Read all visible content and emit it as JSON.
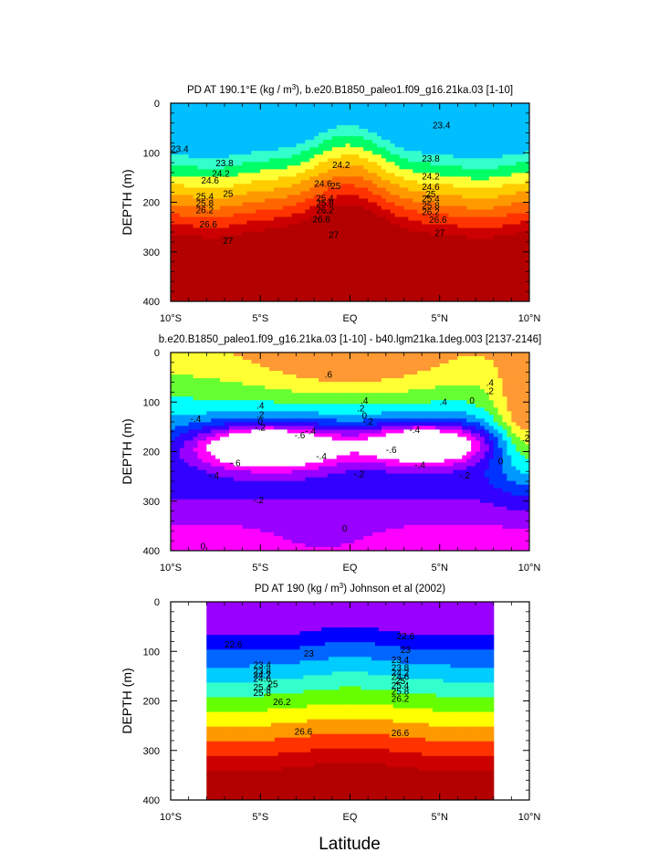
{
  "figure": {
    "xlabel": "Latitude",
    "panel_colors": {
      "top": [
        "#00bfff",
        "#33ffcc",
        "#00ff66",
        "#ffff33",
        "#ffcc00",
        "#ff9900",
        "#ff6600",
        "#ff3300",
        "#cc0000",
        "#b30000"
      ],
      "middle": [
        "#ff9933",
        "#ffff33",
        "#66ff33",
        "#00ffff",
        "#0099ff",
        "#0033ff",
        "#3300ff",
        "#9900ff",
        "#ff00ff",
        "#ffffff"
      ],
      "bottom": [
        "#9900ff",
        "#0000ff",
        "#0066ff",
        "#00ccff",
        "#33ffcc",
        "#66ff00",
        "#ffff00",
        "#ff9900",
        "#ff3300",
        "#cc0000",
        "#b30000"
      ]
    }
  },
  "chart_data": [
    {
      "type": "contour",
      "title": "PD AT 190.1°E (kg / m³), b.e20.B1850_paleo1.f09_g16.21ka.03 [1-10]",
      "title_parts": [
        "PD AT 190.1",
        "°E (kg / m",
        "3",
        "), b.e20.B1850_paleo1.f09_g16.21ka.03 [1-10]"
      ],
      "ylabel": "DEPTH (m)",
      "xlim": [
        -10,
        10
      ],
      "ylim": [
        400,
        0
      ],
      "xticks": [
        -10,
        -5,
        0,
        5,
        10
      ],
      "xtick_labels": [
        "10°S",
        "5°S",
        "EQ",
        "5°N",
        "10°N"
      ],
      "yticks": [
        0,
        100,
        200,
        300,
        400
      ],
      "ytick_labels": [
        "0",
        "100",
        "200",
        "300",
        "400"
      ],
      "contour_levels": [
        23.4,
        23.8,
        24.2,
        24.6,
        25,
        25.4,
        25.8,
        26.2,
        26.6,
        27
      ],
      "contour_labels": [
        {
          "text": "23.4",
          "x": -9.5,
          "y": 93
        },
        {
          "text": "23.4",
          "x": 5.1,
          "y": 45
        },
        {
          "text": "23.8",
          "x": -7,
          "y": 122
        },
        {
          "text": "23.8",
          "x": 4.5,
          "y": 112
        },
        {
          "text": "24.2",
          "x": -7.2,
          "y": 143
        },
        {
          "text": "24.2",
          "x": -0.5,
          "y": 125
        },
        {
          "text": "24.2",
          "x": 4.5,
          "y": 148
        },
        {
          "text": "24.6",
          "x": -7.8,
          "y": 157
        },
        {
          "text": "24.6",
          "x": -1.5,
          "y": 163
        },
        {
          "text": "24.6",
          "x": 4.5,
          "y": 170
        },
        {
          "text": "25",
          "x": -6.8,
          "y": 183
        },
        {
          "text": "25",
          "x": -0.8,
          "y": 168
        },
        {
          "text": "25",
          "x": 4.5,
          "y": 184
        },
        {
          "text": "25.4",
          "x": -8.1,
          "y": 189
        },
        {
          "text": "25.4",
          "x": -1.4,
          "y": 193
        },
        {
          "text": "25.4",
          "x": 4.5,
          "y": 194
        },
        {
          "text": "25.8",
          "x": -8.1,
          "y": 203
        },
        {
          "text": "25.8",
          "x": -1.4,
          "y": 202
        },
        {
          "text": "25.8",
          "x": 4.5,
          "y": 207
        },
        {
          "text": "26.2",
          "x": -8.1,
          "y": 217
        },
        {
          "text": "26.2",
          "x": -1.4,
          "y": 217
        },
        {
          "text": "26.2",
          "x": 4.5,
          "y": 220
        },
        {
          "text": "26.6",
          "x": -7.9,
          "y": 245
        },
        {
          "text": "26.6",
          "x": -1.6,
          "y": 235
        },
        {
          "text": "26.6",
          "x": 4.9,
          "y": 236
        },
        {
          "text": "27",
          "x": -6.8,
          "y": 278
        },
        {
          "text": "27",
          "x": -0.9,
          "y": 266
        },
        {
          "text": "27",
          "x": 5,
          "y": 263
        }
      ]
    },
    {
      "type": "contour",
      "title": "b.e20.B1850_paleo1.f09_g16.21ka.03 [1-10] - b40.lgm21ka.1deg.003 [2137-2146]",
      "ylabel": "DEPTH (m)",
      "xlim": [
        -10,
        10
      ],
      "ylim": [
        400,
        0
      ],
      "xticks": [
        -10,
        -5,
        0,
        5,
        10
      ],
      "xtick_labels": [
        "10°S",
        "5°S",
        "EQ",
        "5°N",
        "10°N"
      ],
      "yticks": [
        0,
        100,
        200,
        300,
        400
      ],
      "ytick_labels": [
        "0",
        "100",
        "200",
        "300",
        "400"
      ],
      "contour_labels": [
        {
          "text": ".6",
          "x": -1.2,
          "y": 45
        },
        {
          "text": ".4",
          "x": 7.8,
          "y": 62
        },
        {
          "text": ".2",
          "x": 7.8,
          "y": 78
        },
        {
          "text": "0",
          "x": 6.8,
          "y": 98
        },
        {
          "text": ".4",
          "x": -5,
          "y": 108
        },
        {
          "text": ".4",
          "x": 0.8,
          "y": 98
        },
        {
          "text": ".4",
          "x": 5.2,
          "y": 100
        },
        {
          "text": ".2",
          "x": -5,
          "y": 126
        },
        {
          "text": ".2",
          "x": 0.6,
          "y": 113
        },
        {
          "text": ".2",
          "x": 9.8,
          "y": 173
        },
        {
          "text": "0",
          "x": -5,
          "y": 140
        },
        {
          "text": "0",
          "x": 0.8,
          "y": 128
        },
        {
          "text": "0",
          "x": 8.4,
          "y": 220
        },
        {
          "text": "-.4",
          "x": -8.6,
          "y": 135
        },
        {
          "text": "-.2",
          "x": -5,
          "y": 152
        },
        {
          "text": "-.2",
          "x": 1,
          "y": 140
        },
        {
          "text": "-.4",
          "x": -2.2,
          "y": 159
        },
        {
          "text": "-.4",
          "x": 3.6,
          "y": 157
        },
        {
          "text": "-.6",
          "x": -2.8,
          "y": 168
        },
        {
          "text": "-.6",
          "x": 2.3,
          "y": 197
        },
        {
          "text": "-.6",
          "x": -6.4,
          "y": 224
        },
        {
          "text": "-.4",
          "x": -1.6,
          "y": 210
        },
        {
          "text": "-.4",
          "x": 3.9,
          "y": 228
        },
        {
          "text": "-.4",
          "x": -7.6,
          "y": 249
        },
        {
          "text": "-.2",
          "x": 0.5,
          "y": 246
        },
        {
          "text": "-.2",
          "x": 6.4,
          "y": 249
        },
        {
          "text": "-.2",
          "x": -5.1,
          "y": 299
        },
        {
          "text": "0",
          "x": -0.3,
          "y": 356
        },
        {
          "text": "0",
          "x": -8.2,
          "y": 392
        }
      ]
    },
    {
      "type": "contour",
      "title": "PD AT 190 (kg / m³) Johnson et al (2002)",
      "title_parts": [
        "PD AT 190 (kg / m",
        "3",
        ") Johnson et al (2002)"
      ],
      "ylabel": "DEPTH (m)",
      "xlim": [
        -10,
        10
      ],
      "ylim": [
        400,
        0
      ],
      "data_extent_x": [
        -8,
        8
      ],
      "xticks": [
        -10,
        -5,
        0,
        5,
        10
      ],
      "xtick_labels": [
        "10°S",
        "5°S",
        "EQ",
        "5°N",
        "10°N"
      ],
      "yticks": [
        0,
        100,
        200,
        300,
        400
      ],
      "ytick_labels": [
        "0",
        "100",
        "200",
        "300",
        "400"
      ],
      "contour_labels": [
        {
          "text": "22.6",
          "x": -6.5,
          "y": 87
        },
        {
          "text": "22.6",
          "x": 3.1,
          "y": 70
        },
        {
          "text": "23",
          "x": -2.3,
          "y": 105
        },
        {
          "text": "23",
          "x": 3.1,
          "y": 98
        },
        {
          "text": "23.4",
          "x": -4.9,
          "y": 128
        },
        {
          "text": "23.4",
          "x": 2.8,
          "y": 118
        },
        {
          "text": "23.8",
          "x": -4.9,
          "y": 141
        },
        {
          "text": "23.8",
          "x": 2.8,
          "y": 134
        },
        {
          "text": "24.2",
          "x": -4.9,
          "y": 148
        },
        {
          "text": "24.2",
          "x": 2.8,
          "y": 144
        },
        {
          "text": "24.6",
          "x": -4.9,
          "y": 156
        },
        {
          "text": "24.6",
          "x": 2.8,
          "y": 152
        },
        {
          "text": "25",
          "x": -4.3,
          "y": 167
        },
        {
          "text": "25",
          "x": 2.8,
          "y": 160
        },
        {
          "text": "25.4",
          "x": -4.9,
          "y": 173
        },
        {
          "text": "25.4",
          "x": 2.8,
          "y": 170
        },
        {
          "text": "25.8",
          "x": -4.9,
          "y": 184
        },
        {
          "text": "25.8",
          "x": 2.8,
          "y": 182
        },
        {
          "text": "26.2",
          "x": -3.8,
          "y": 203
        },
        {
          "text": "26.2",
          "x": 2.8,
          "y": 196
        },
        {
          "text": "26.6",
          "x": -2.6,
          "y": 263
        },
        {
          "text": "26.6",
          "x": 2.8,
          "y": 265
        }
      ]
    }
  ]
}
